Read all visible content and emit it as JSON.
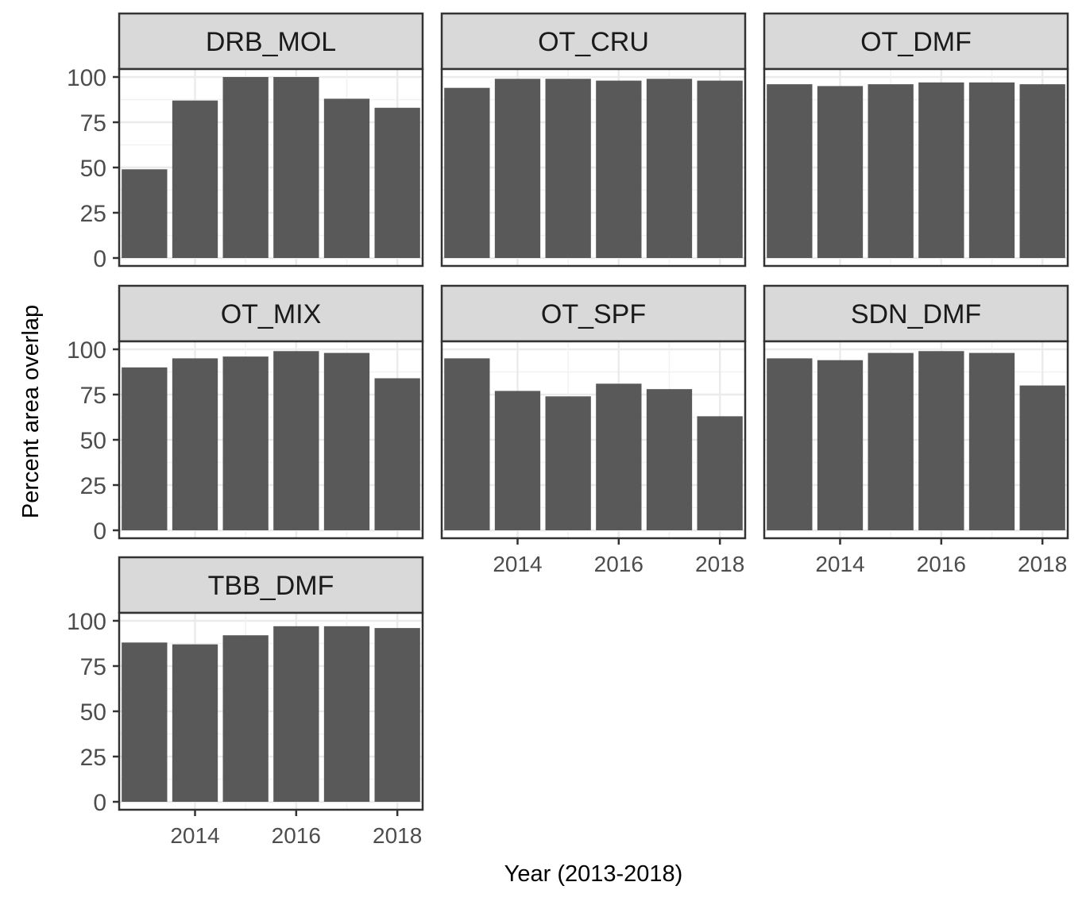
{
  "chart_data": {
    "type": "bar",
    "xlabel": "Year (2013-2018)",
    "ylabel": "Percent area overlap",
    "x": [
      2013,
      2014,
      2015,
      2016,
      2017,
      2018
    ],
    "xlim": [
      2012.5,
      2018.5
    ],
    "xticks": [
      2014,
      2016,
      2018
    ],
    "xtick_labels": [
      "2014",
      "2016",
      "2018"
    ],
    "ylim": [
      0,
      100
    ],
    "yticks": [
      0,
      25,
      50,
      75,
      100
    ],
    "ytick_labels": [
      "0",
      "25",
      "50",
      "75",
      "100"
    ],
    "grid": true,
    "bar_color": "#595959",
    "strip_color": "#d9d9d9",
    "panels": [
      {
        "label": "DRB_MOL",
        "values": [
          49,
          87,
          100,
          100,
          88,
          83
        ]
      },
      {
        "label": "OT_CRU",
        "values": [
          94,
          99,
          99,
          98,
          99,
          98
        ]
      },
      {
        "label": "OT_DMF",
        "values": [
          96,
          95,
          96,
          97,
          97,
          96
        ]
      },
      {
        "label": "OT_MIX",
        "values": [
          90,
          95,
          96,
          99,
          98,
          84
        ]
      },
      {
        "label": "OT_SPF",
        "values": [
          95,
          77,
          74,
          81,
          78,
          63
        ]
      },
      {
        "label": "SDN_DMF",
        "values": [
          95,
          94,
          98,
          99,
          98,
          80
        ]
      },
      {
        "label": "TBB_DMF",
        "values": [
          88,
          87,
          92,
          97,
          97,
          96
        ]
      }
    ]
  }
}
